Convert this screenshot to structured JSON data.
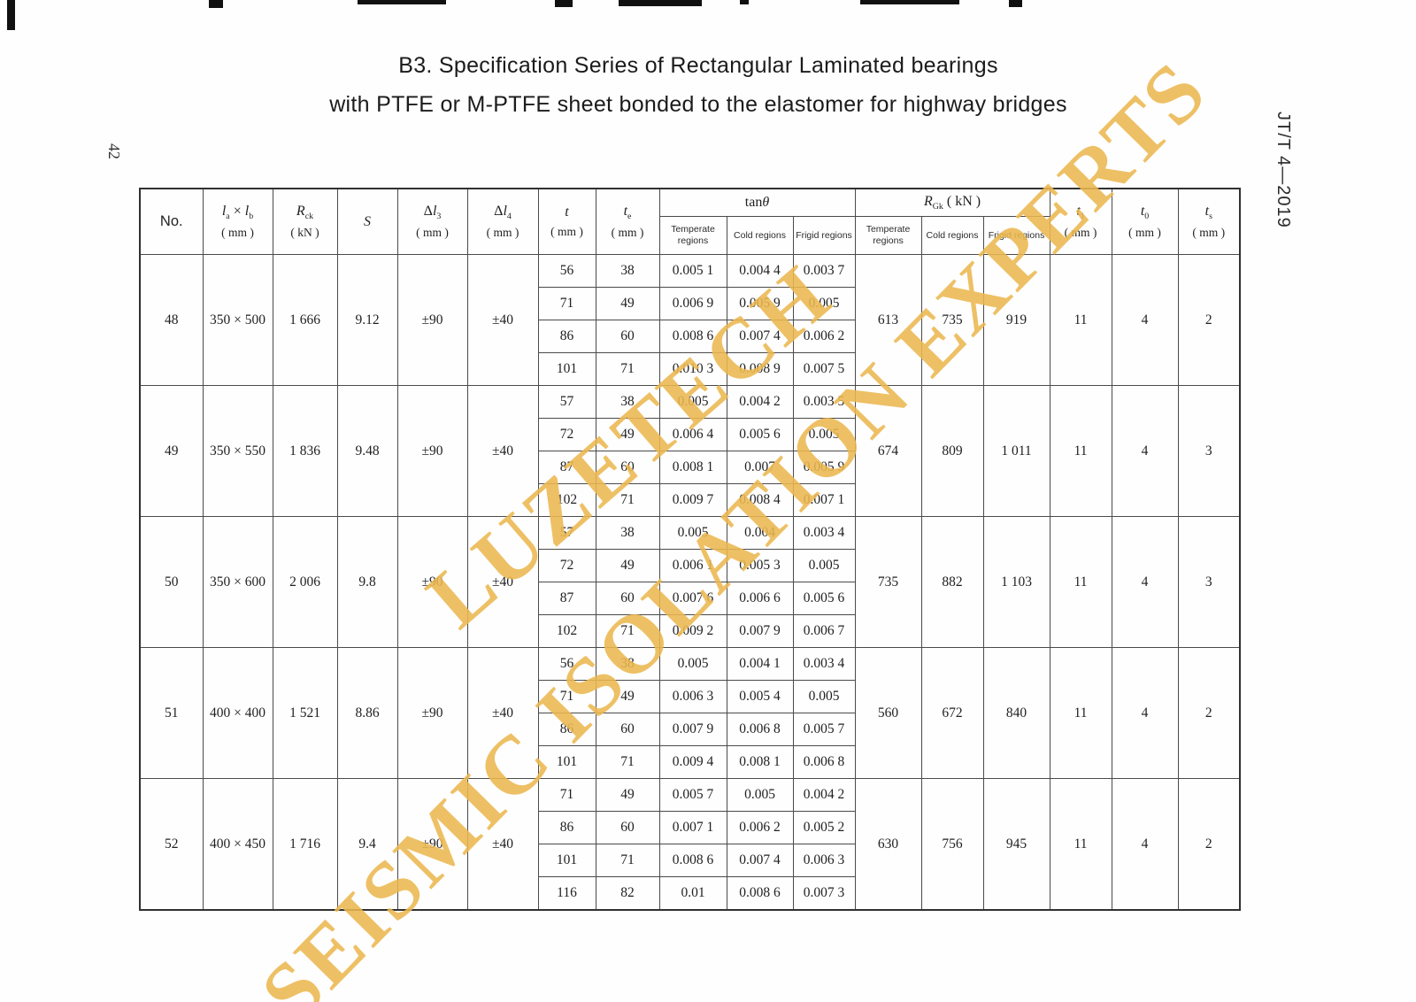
{
  "page": {
    "title_line1": "B3.  Specification Series of Rectangular Laminated bearings",
    "title_line2": "with PTFE or M-PTFE sheet bonded to the elastomer for highway bridges",
    "page_number": "42",
    "standard_label": "JT/T 4—2019",
    "watermark": {
      "line1": "LUZETECH",
      "line2": "SEISMIC ISOLATION EXPERTS",
      "color": "#ecb850"
    }
  },
  "table": {
    "header": {
      "plain": [
        {
          "id": "no",
          "sans": true,
          "segs": [
            {
              "t": "No."
            }
          ],
          "unit": ""
        },
        {
          "id": "size",
          "segs": [
            {
              "t": "l",
              "it": 1
            },
            {
              "t": "a",
              "sub": 1
            },
            {
              "t": " × "
            },
            {
              "t": "l",
              "it": 1
            },
            {
              "t": "b",
              "sub": 1
            }
          ],
          "unit": "( mm )"
        },
        {
          "id": "rck",
          "segs": [
            {
              "t": "R",
              "it": 1
            },
            {
              "t": "ck",
              "sub": 1
            }
          ],
          "unit": "( kN )"
        },
        {
          "id": "s",
          "segs": [
            {
              "t": "S",
              "it": 1
            }
          ],
          "unit": ""
        },
        {
          "id": "dl3",
          "segs": [
            {
              "t": "Δ"
            },
            {
              "t": "l",
              "it": 1
            },
            {
              "t": "3",
              "sub": 1
            }
          ],
          "unit": "( mm )"
        },
        {
          "id": "dl4",
          "segs": [
            {
              "t": "Δ"
            },
            {
              "t": "l",
              "it": 1
            },
            {
              "t": "4",
              "sub": 1
            }
          ],
          "unit": "( mm )"
        },
        {
          "id": "t",
          "segs": [
            {
              "t": "t",
              "it": 1
            }
          ],
          "unit": "( mm )"
        },
        {
          "id": "te",
          "segs": [
            {
              "t": "t",
              "it": 1
            },
            {
              "t": "e",
              "sub": 1
            }
          ],
          "unit": "( mm )"
        }
      ],
      "groups": [
        {
          "id": "tan",
          "segs": [
            {
              "t": "tan"
            },
            {
              "t": "θ",
              "it": 1
            }
          ],
          "subs": [
            "Temperate regions",
            "Cold regions",
            "Frigid regions"
          ]
        },
        {
          "id": "rgk",
          "segs": [
            {
              "t": "R",
              "it": 1
            },
            {
              "t": "Gk",
              "sub": 1
            },
            {
              "t": " ( kN )"
            }
          ],
          "subs": [
            "Temperate regions",
            "Cold regions",
            "Frigid regions"
          ]
        }
      ],
      "tail": [
        {
          "id": "t1",
          "segs": [
            {
              "t": "t",
              "it": 1
            },
            {
              "t": "1",
              "sub": 1
            }
          ],
          "unit": "( mm )"
        },
        {
          "id": "t0",
          "segs": [
            {
              "t": "t",
              "it": 1
            },
            {
              "t": "0",
              "sub": 1
            }
          ],
          "unit": "( mm )"
        },
        {
          "id": "ts",
          "segs": [
            {
              "t": "t",
              "it": 1
            },
            {
              "t": "s",
              "sub": 1
            }
          ],
          "unit": "( mm )"
        }
      ]
    },
    "groups": [
      {
        "no": "48",
        "size": "350 × 500",
        "rck": "1 666",
        "s": "9.12",
        "dl3": "±90",
        "dl4": "±40",
        "rows": [
          {
            "t": "56",
            "te": "38",
            "tan": [
              "0.005 1",
              "0.004 4",
              "0.003 7"
            ]
          },
          {
            "t": "71",
            "te": "49",
            "tan": [
              "0.006 9",
              "0.005 9",
              "0.005"
            ]
          },
          {
            "t": "86",
            "te": "60",
            "tan": [
              "0.008 6",
              "0.007 4",
              "0.006 2"
            ]
          },
          {
            "t": "101",
            "te": "71",
            "tan": [
              "0.010 3",
              "0.008 9",
              "0.007 5"
            ]
          }
        ],
        "rgk": [
          "613",
          "735",
          "919"
        ],
        "t1": "11",
        "t0": "4",
        "ts": "2"
      },
      {
        "no": "49",
        "size": "350 × 550",
        "rck": "1 836",
        "s": "9.48",
        "dl3": "±90",
        "dl4": "±40",
        "rows": [
          {
            "t": "57",
            "te": "38",
            "tan": [
              "0.005",
              "0.004 2",
              "0.003 5"
            ]
          },
          {
            "t": "72",
            "te": "49",
            "tan": [
              "0.006 4",
              "0.005 6",
              "0.005"
            ]
          },
          {
            "t": "87",
            "te": "60",
            "tan": [
              "0.008 1",
              "0.007",
              "0.005 9"
            ]
          },
          {
            "t": "102",
            "te": "71",
            "tan": [
              "0.009 7",
              "0.008 4",
              "0.007 1"
            ]
          }
        ],
        "rgk": [
          "674",
          "809",
          "1 011"
        ],
        "t1": "11",
        "t0": "4",
        "ts": "3"
      },
      {
        "no": "50",
        "size": "350 × 600",
        "rck": "2 006",
        "s": "9.8",
        "dl3": "±90",
        "dl4": "±40",
        "rows": [
          {
            "t": "57",
            "te": "38",
            "tan": [
              "0.005",
              "0.004",
              "0.003 4"
            ]
          },
          {
            "t": "72",
            "te": "49",
            "tan": [
              "0.006 1",
              "0.005 3",
              "0.005"
            ]
          },
          {
            "t": "87",
            "te": "60",
            "tan": [
              "0.007 6",
              "0.006 6",
              "0.005 6"
            ]
          },
          {
            "t": "102",
            "te": "71",
            "tan": [
              "0.009 2",
              "0.007 9",
              "0.006 7"
            ]
          }
        ],
        "rgk": [
          "735",
          "882",
          "1 103"
        ],
        "t1": "11",
        "t0": "4",
        "ts": "3"
      },
      {
        "no": "51",
        "size": "400 × 400",
        "rck": "1 521",
        "s": "8.86",
        "dl3": "±90",
        "dl4": "±40",
        "rows": [
          {
            "t": "56",
            "te": "38",
            "tan": [
              "0.005",
              "0.004 1",
              "0.003 4"
            ]
          },
          {
            "t": "71",
            "te": "49",
            "tan": [
              "0.006 3",
              "0.005 4",
              "0.005"
            ]
          },
          {
            "t": "86",
            "te": "60",
            "tan": [
              "0.007 9",
              "0.006 8",
              "0.005 7"
            ]
          },
          {
            "t": "101",
            "te": "71",
            "tan": [
              "0.009 4",
              "0.008 1",
              "0.006 8"
            ]
          }
        ],
        "rgk": [
          "560",
          "672",
          "840"
        ],
        "t1": "11",
        "t0": "4",
        "ts": "2"
      },
      {
        "no": "52",
        "size": "400 × 450",
        "rck": "1 716",
        "s": "9.4",
        "dl3": "±90",
        "dl4": "±40",
        "rows": [
          {
            "t": "71",
            "te": "49",
            "tan": [
              "0.005 7",
              "0.005",
              "0.004 2"
            ]
          },
          {
            "t": "86",
            "te": "60",
            "tan": [
              "0.007 1",
              "0.006 2",
              "0.005 2"
            ]
          },
          {
            "t": "101",
            "te": "71",
            "tan": [
              "0.008 6",
              "0.007 4",
              "0.006 3"
            ]
          },
          {
            "t": "116",
            "te": "82",
            "tan": [
              "0.01",
              "0.008 6",
              "0.007 3"
            ]
          }
        ],
        "rgk": [
          "630",
          "756",
          "945"
        ],
        "t1": "11",
        "t0": "4",
        "ts": "2"
      }
    ]
  }
}
